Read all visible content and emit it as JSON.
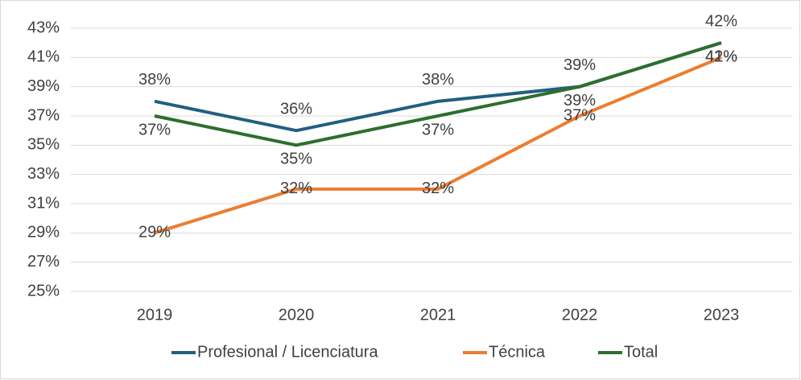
{
  "chart_data": {
    "type": "line",
    "categories": [
      "2019",
      "2020",
      "2021",
      "2022",
      "2023"
    ],
    "series": [
      {
        "name": "Profesional / Licenciatura",
        "color": "#215f80",
        "values": [
          38,
          36,
          38,
          39,
          42
        ],
        "value_labels": [
          "38%",
          "36%",
          "38%",
          "39%",
          "42%"
        ]
      },
      {
        "name": "Técnica",
        "color": "#ed7d31",
        "values": [
          29,
          32,
          32,
          37,
          41
        ],
        "value_labels": [
          "29%",
          "32%",
          "32%",
          "37%",
          "41%"
        ]
      },
      {
        "name": "Total",
        "color": "#2d6e2f",
        "values": [
          37,
          35,
          37,
          39,
          42
        ],
        "value_labels": [
          "37%",
          "35%",
          "37%",
          "39%",
          "42%"
        ]
      }
    ],
    "ylim": [
      25,
      43
    ],
    "yticks": [
      {
        "value": 25,
        "label": "25%"
      },
      {
        "value": 27,
        "label": "27%"
      },
      {
        "value": 29,
        "label": "29%"
      },
      {
        "value": 31,
        "label": "31%"
      },
      {
        "value": 33,
        "label": "33%"
      },
      {
        "value": 35,
        "label": "35%"
      },
      {
        "value": 37,
        "label": "37%"
      },
      {
        "value": 39,
        "label": "39%"
      },
      {
        "value": 41,
        "label": "41%"
      },
      {
        "value": 43,
        "label": "43%"
      }
    ],
    "grid": true,
    "legend": "bottom"
  }
}
